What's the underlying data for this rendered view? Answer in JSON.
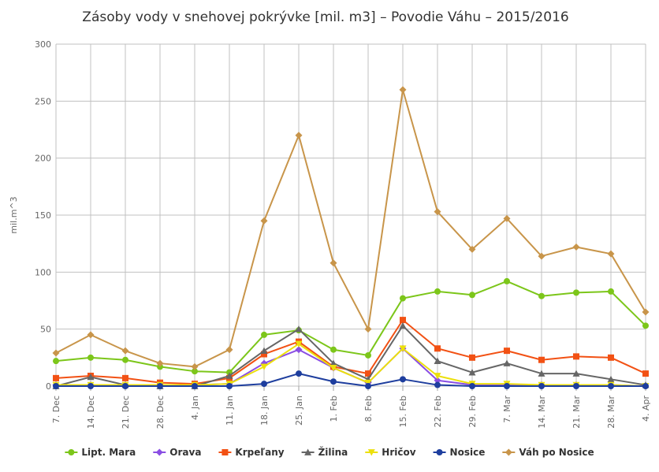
{
  "chart_data": {
    "type": "line",
    "title": "Zásoby vody v snehovej pokrývke [mil. m3] – Povodie Váhu – 2015/2016",
    "xlabel": "",
    "ylabel": "mil.m^3",
    "ylim": [
      0,
      300
    ],
    "yticks": [
      0,
      50,
      100,
      150,
      200,
      250,
      300
    ],
    "grid": true,
    "legend_position": "bottom",
    "categories": [
      "7. Dec",
      "14. Dec",
      "21. Dec",
      "28. Dec",
      "4. Jan",
      "11. Jan",
      "18. Jan",
      "25. Jan",
      "1. Feb",
      "8. Feb",
      "15. Feb",
      "22. Feb",
      "29. Feb",
      "7. Mar",
      "14. Mar",
      "21. Mar",
      "28. Mar",
      "4. Apr"
    ],
    "series": [
      {
        "name": "Lipt. Mara",
        "color": "#7cc61a",
        "marker": "circle",
        "values": [
          22,
          25,
          23,
          17,
          13,
          12,
          45,
          49,
          32,
          27,
          77,
          83,
          80,
          92,
          79,
          82,
          83,
          53
        ]
      },
      {
        "name": "Orava",
        "color": "#8a4ee3",
        "marker": "diamond",
        "values": [
          1,
          1,
          1,
          1,
          1,
          2,
          20,
          32,
          16,
          3,
          33,
          5,
          1,
          1,
          1,
          1,
          1,
          0
        ]
      },
      {
        "name": "Krpeľany",
        "color": "#f25114",
        "marker": "square",
        "values": [
          7,
          9,
          7,
          3,
          2,
          7,
          28,
          39,
          17,
          11,
          58,
          33,
          25,
          31,
          23,
          26,
          25,
          11
        ]
      },
      {
        "name": "Žilina",
        "color": "#666666",
        "marker": "triangle",
        "values": [
          0,
          8,
          1,
          0,
          0,
          9,
          31,
          50,
          20,
          6,
          53,
          22,
          12,
          20,
          11,
          11,
          6,
          1
        ]
      },
      {
        "name": "Hričov",
        "color": "#ece00c",
        "marker": "triangle-down",
        "values": [
          1,
          1,
          1,
          1,
          1,
          2,
          17,
          37,
          16,
          3,
          33,
          9,
          2,
          2,
          1,
          1,
          1,
          0
        ]
      },
      {
        "name": "Nosice",
        "color": "#1e3e9e",
        "marker": "circle",
        "values": [
          0,
          0,
          0,
          0,
          0,
          0,
          2,
          11,
          4,
          0,
          6,
          1,
          0,
          0,
          0,
          0,
          0,
          0
        ]
      },
      {
        "name": "Váh po Nosice",
        "color": "#c8954a",
        "marker": "diamond",
        "values": [
          29,
          45,
          31,
          20,
          17,
          32,
          145,
          220,
          108,
          50,
          260,
          153,
          120,
          147,
          114,
          122,
          116,
          65
        ]
      }
    ]
  }
}
